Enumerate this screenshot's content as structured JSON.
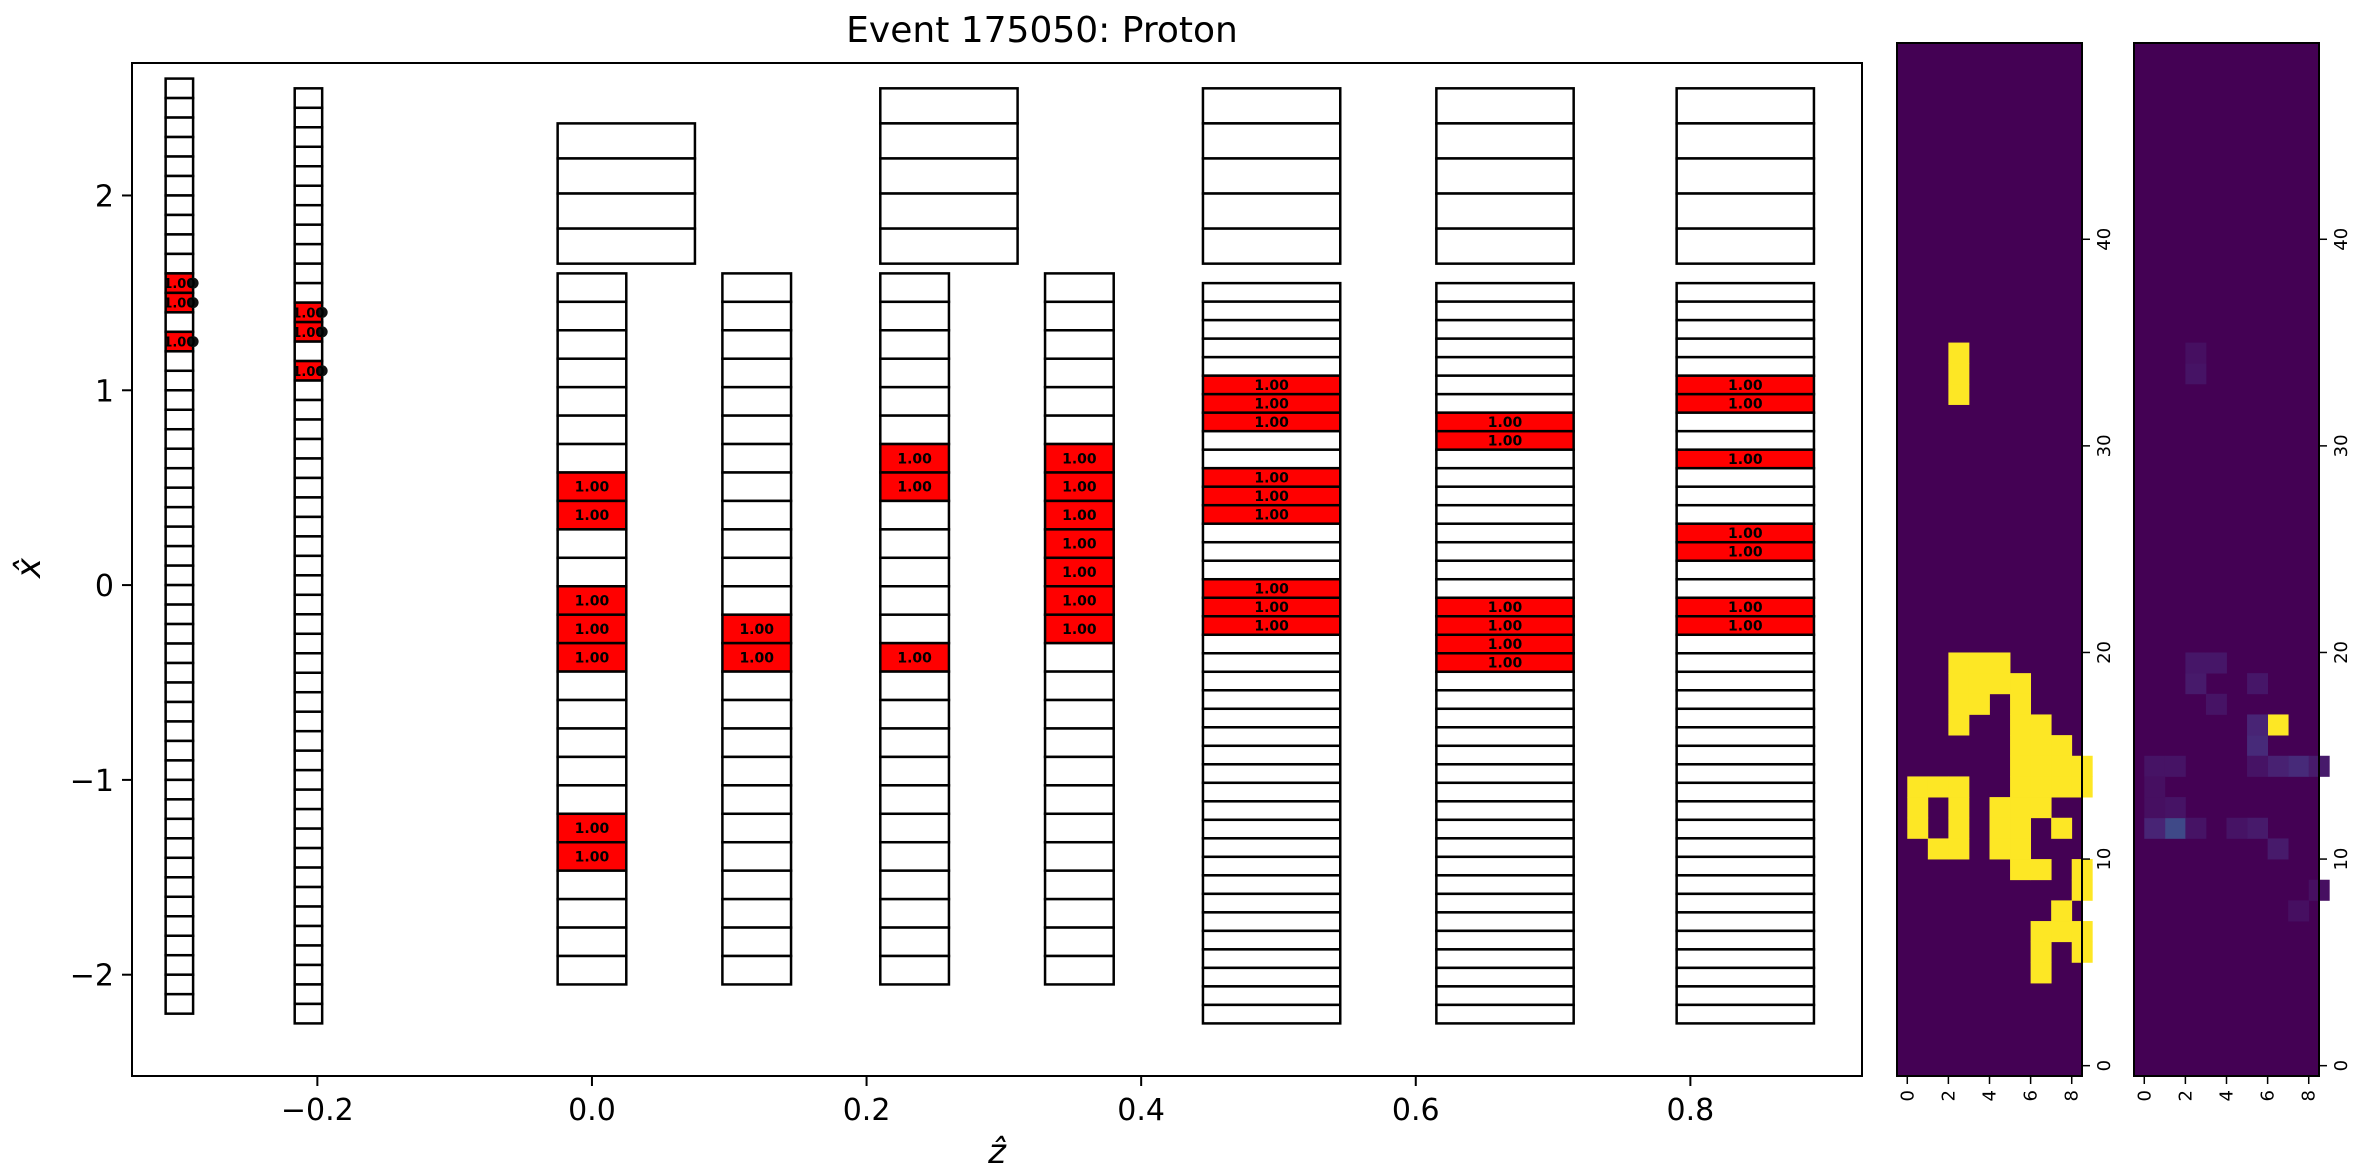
{
  "chart_data": [
    {
      "type": "detector-layout",
      "title": "Event 175050: Proton",
      "xlabel": "ẑ",
      "ylabel": "x̂",
      "xlim": [
        -0.335,
        0.925
      ],
      "ylim": [
        -2.52,
        2.68
      ],
      "xticks": [
        {
          "v": -0.2,
          "label": "−0.2"
        },
        {
          "v": 0.0,
          "label": "0.0"
        },
        {
          "v": 0.2,
          "label": "0.2"
        },
        {
          "v": 0.4,
          "label": "0.4"
        },
        {
          "v": 0.6,
          "label": "0.6"
        },
        {
          "v": 0.8,
          "label": "0.8"
        }
      ],
      "yticks": [
        {
          "v": -2,
          "label": "−2"
        },
        {
          "v": -1,
          "label": "−1"
        },
        {
          "v": 0,
          "label": "0"
        },
        {
          "v": 1,
          "label": "1"
        },
        {
          "v": 2,
          "label": "2"
        }
      ],
      "hit_color": "#ff0000",
      "cell_label": "1.00",
      "columns": [
        {
          "x0": -0.3105,
          "x1": -0.2905,
          "y0": -2.2,
          "y1": 2.6,
          "n": 48,
          "hits": [
            10,
            11,
            13
          ],
          "markers": true
        },
        {
          "x0": -0.2165,
          "x1": -0.1965,
          "y0": -2.25,
          "y1": 2.55,
          "n": 48,
          "hits": [
            11,
            12,
            14
          ],
          "markers": true
        },
        {
          "x0": -0.025,
          "x1": 0.075,
          "y0": 1.65,
          "y1": 2.37,
          "n": 4,
          "hits": []
        },
        {
          "x0": -0.025,
          "x1": 0.025,
          "y0": -2.05,
          "y1": 1.6,
          "n": 25,
          "hits": [
            7,
            8,
            11,
            12,
            13,
            19,
            20
          ]
        },
        {
          "x0": 0.095,
          "x1": 0.145,
          "y0": -2.05,
          "y1": 1.6,
          "n": 25,
          "hits": [
            12,
            13
          ]
        },
        {
          "x0": 0.21,
          "x1": 0.31,
          "y0": 1.65,
          "y1": 2.55,
          "n": 5,
          "hits": []
        },
        {
          "x0": 0.21,
          "x1": 0.26,
          "y0": -2.05,
          "y1": 1.6,
          "n": 25,
          "hits": [
            6,
            7,
            13
          ]
        },
        {
          "x0": 0.33,
          "x1": 0.38,
          "y0": -2.05,
          "y1": 1.6,
          "n": 25,
          "hits": [
            6,
            7,
            8,
            9,
            10,
            11,
            12
          ]
        },
        {
          "x0": 0.445,
          "x1": 0.545,
          "y0": 1.65,
          "y1": 2.55,
          "n": 5,
          "hits": []
        },
        {
          "x0": 0.445,
          "x1": 0.545,
          "y0": -2.25,
          "y1": 1.55,
          "n": 40,
          "hits": [
            5,
            6,
            7,
            10,
            11,
            12,
            16,
            17,
            18
          ]
        },
        {
          "x0": 0.615,
          "x1": 0.715,
          "y0": 1.65,
          "y1": 2.55,
          "n": 5,
          "hits": []
        },
        {
          "x0": 0.615,
          "x1": 0.715,
          "y0": -2.25,
          "y1": 1.55,
          "n": 40,
          "hits": [
            7,
            8,
            17,
            18,
            19,
            20
          ]
        },
        {
          "x0": 0.79,
          "x1": 0.89,
          "y0": 1.65,
          "y1": 2.55,
          "n": 5,
          "hits": []
        },
        {
          "x0": 0.79,
          "x1": 0.89,
          "y0": -2.25,
          "y1": 1.55,
          "n": 40,
          "hits": [
            5,
            6,
            9,
            13,
            14,
            17,
            18
          ]
        }
      ]
    },
    {
      "type": "heatmap",
      "colormap": "viridis",
      "xlim": [
        -0.5,
        8.5
      ],
      "ylim": [
        -0.5,
        49.5
      ],
      "xticks": [
        0,
        2,
        4,
        6,
        8
      ],
      "yticks": [
        0,
        10,
        20,
        30,
        40
      ],
      "cells": [
        [
          2,
          32
        ],
        [
          2,
          33
        ],
        [
          2,
          34
        ],
        [
          2,
          19
        ],
        [
          3,
          19
        ],
        [
          4,
          19
        ],
        [
          2,
          18
        ],
        [
          3,
          18
        ],
        [
          4,
          18
        ],
        [
          5,
          18
        ],
        [
          2,
          17
        ],
        [
          3,
          17
        ],
        [
          5,
          17
        ],
        [
          2,
          16
        ],
        [
          5,
          16
        ],
        [
          6,
          16
        ],
        [
          5,
          15
        ],
        [
          6,
          15
        ],
        [
          7,
          15
        ],
        [
          5,
          14
        ],
        [
          6,
          14
        ],
        [
          7,
          14
        ],
        [
          8,
          14
        ],
        [
          0,
          13
        ],
        [
          1,
          13
        ],
        [
          2,
          13
        ],
        [
          5,
          13
        ],
        [
          6,
          13
        ],
        [
          7,
          13
        ],
        [
          8,
          13
        ],
        [
          0,
          12
        ],
        [
          2,
          12
        ],
        [
          4,
          12
        ],
        [
          5,
          12
        ],
        [
          6,
          12
        ],
        [
          0,
          11
        ],
        [
          2,
          11
        ],
        [
          4,
          11
        ],
        [
          5,
          11
        ],
        [
          7,
          11
        ],
        [
          1,
          10
        ],
        [
          2,
          10
        ],
        [
          4,
          10
        ],
        [
          5,
          10
        ],
        [
          5,
          9
        ],
        [
          6,
          9
        ],
        [
          8,
          9
        ],
        [
          8,
          8
        ],
        [
          7,
          7
        ],
        [
          6,
          6
        ],
        [
          7,
          6
        ],
        [
          8,
          6
        ],
        [
          6,
          5
        ],
        [
          8,
          5
        ],
        [
          6,
          4
        ]
      ],
      "background": "#440154",
      "cell_color": "#fde725"
    },
    {
      "type": "heatmap",
      "colormap": "viridis",
      "xlim": [
        -0.5,
        8.5
      ],
      "ylim": [
        -0.5,
        49.5
      ],
      "xticks": [
        0,
        2,
        4,
        6,
        8
      ],
      "yticks": [
        0,
        10,
        20,
        30,
        40
      ],
      "background": "#440154",
      "cells": [
        {
          "c": 6,
          "r": 16,
          "v": 1.0
        },
        {
          "c": 1,
          "r": 11,
          "v": 0.22
        },
        {
          "c": 0,
          "r": 11,
          "v": 0.1
        },
        {
          "c": 5,
          "r": 15,
          "v": 0.12
        },
        {
          "c": 5,
          "r": 16,
          "v": 0.1
        },
        {
          "c": 7,
          "r": 14,
          "v": 0.12
        },
        {
          "c": 6,
          "r": 14,
          "v": 0.09
        },
        {
          "c": 8,
          "r": 14,
          "v": 0.07
        },
        {
          "c": 5,
          "r": 11,
          "v": 0.07
        },
        {
          "c": 6,
          "r": 10,
          "v": 0.07
        },
        {
          "c": 2,
          "r": 18,
          "v": 0.07
        },
        {
          "c": 2,
          "r": 19,
          "v": 0.06
        },
        {
          "c": 3,
          "r": 19,
          "v": 0.06
        },
        {
          "c": 5,
          "r": 18,
          "v": 0.06
        },
        {
          "c": 3,
          "r": 17,
          "v": 0.05
        },
        {
          "c": 1,
          "r": 12,
          "v": 0.05
        },
        {
          "c": 2,
          "r": 11,
          "v": 0.05
        },
        {
          "c": 4,
          "r": 11,
          "v": 0.05
        },
        {
          "c": 0,
          "r": 14,
          "v": 0.05
        },
        {
          "c": 1,
          "r": 14,
          "v": 0.05
        },
        {
          "c": 2,
          "r": 33,
          "v": 0.05
        },
        {
          "c": 2,
          "r": 34,
          "v": 0.04
        },
        {
          "c": 5,
          "r": 14,
          "v": 0.05
        },
        {
          "c": 7,
          "r": 7,
          "v": 0.04
        },
        {
          "c": 8,
          "r": 8,
          "v": 0.04
        },
        {
          "c": 0,
          "r": 13,
          "v": 0.04
        },
        {
          "c": 0,
          "r": 12,
          "v": 0.04
        }
      ]
    }
  ]
}
